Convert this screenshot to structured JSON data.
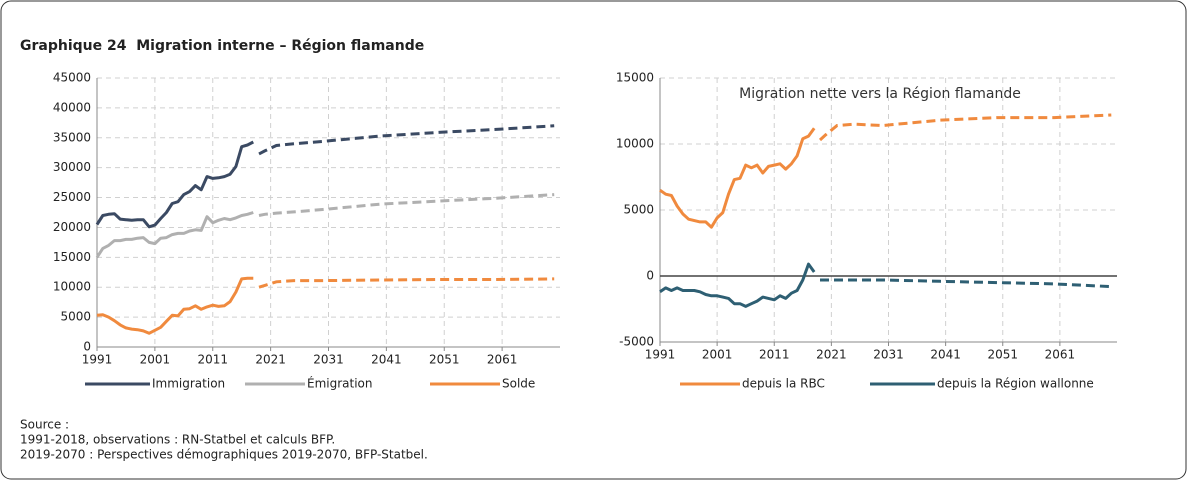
{
  "figure_title": "Graphique 24  Migration interne – Région flamande",
  "source": [
    "Source :",
    "1991-2018, observations : RN-Statbel et calculs BFP.",
    "2019-2070 : Perspectives démographiques 2019-2070, BFP-Statbel."
  ],
  "chart_data": [
    {
      "type": "line",
      "x": [
        1991,
        1992,
        1993,
        1994,
        1995,
        1996,
        1997,
        1998,
        1999,
        2000,
        2001,
        2002,
        2003,
        2004,
        2005,
        2006,
        2007,
        2008,
        2009,
        2010,
        2011,
        2012,
        2013,
        2014,
        2015,
        2016,
        2017,
        2018
      ],
      "x_projection": [
        2019,
        2020,
        2022,
        2025,
        2030,
        2040,
        2050,
        2060,
        2070
      ],
      "xlim": [
        1991,
        2071
      ],
      "xticks": [
        1991,
        2001,
        2011,
        2021,
        2031,
        2041,
        2051,
        2061
      ],
      "ylim": [
        0,
        45000
      ],
      "yticks": [
        0,
        5000,
        10000,
        15000,
        20000,
        25000,
        30000,
        35000,
        40000,
        45000
      ],
      "grid": true,
      "series": [
        {
          "name": "Immigration",
          "color": "#3b4a63",
          "values": [
            20500,
            22000,
            22200,
            22300,
            21400,
            21300,
            21200,
            21300,
            21300,
            20100,
            20400,
            21500,
            22500,
            24000,
            24300,
            25500,
            26000,
            27000,
            26300,
            28500,
            28200,
            28300,
            28500,
            28900,
            30200,
            33500,
            33800,
            34300
          ],
          "projection_values": [
            32300,
            32800,
            33700,
            34000,
            34400,
            35300,
            35900,
            36400,
            37000
          ]
        },
        {
          "name": "Émigration",
          "color": "#b0b0b0",
          "values": [
            15000,
            16500,
            17000,
            17800,
            17800,
            18000,
            18000,
            18200,
            18300,
            17500,
            17300,
            18200,
            18300,
            18800,
            19000,
            19000,
            19400,
            19600,
            19500,
            21800,
            20800,
            21200,
            21500,
            21300,
            21600,
            22000,
            22200,
            22500
          ],
          "projection_values": [
            22000,
            22200,
            22400,
            22600,
            23000,
            23900,
            24400,
            24900,
            25500
          ]
        },
        {
          "name": "Solde",
          "color": "#f08a3e",
          "values": [
            5300,
            5400,
            5000,
            4400,
            3700,
            3200,
            3000,
            2900,
            2700,
            2300,
            2800,
            3300,
            4300,
            5300,
            5200,
            6300,
            6400,
            6900,
            6300,
            6700,
            7000,
            6800,
            6900,
            7600,
            9200,
            11400,
            11500,
            11500
          ],
          "projection_values": [
            10000,
            10300,
            10900,
            11100,
            11100,
            11200,
            11300,
            11300,
            11400
          ]
        }
      ]
    },
    {
      "type": "line",
      "title": "Migration nette vers la Région flamande",
      "x": [
        1991,
        1992,
        1993,
        1994,
        1995,
        1996,
        1997,
        1998,
        1999,
        2000,
        2001,
        2002,
        2003,
        2004,
        2005,
        2006,
        2007,
        2008,
        2009,
        2010,
        2011,
        2012,
        2013,
        2014,
        2015,
        2016,
        2017,
        2018
      ],
      "x_projection": [
        2019,
        2020,
        2022,
        2025,
        2030,
        2040,
        2050,
        2060,
        2070
      ],
      "xlim": [
        1991,
        2071
      ],
      "xticks": [
        1991,
        2001,
        2011,
        2021,
        2031,
        2041,
        2051,
        2061
      ],
      "ylim": [
        -5000,
        15000
      ],
      "yticks": [
        -5000,
        0,
        5000,
        10000,
        15000
      ],
      "grid": true,
      "series": [
        {
          "name": "depuis la RBC",
          "color": "#f08a3e",
          "values": [
            6500,
            6200,
            6100,
            5300,
            4700,
            4300,
            4200,
            4100,
            4100,
            3700,
            4400,
            4800,
            6200,
            7300,
            7400,
            8400,
            8200,
            8400,
            7800,
            8300,
            8400,
            8500,
            8100,
            8500,
            9100,
            10400,
            10600,
            11200
          ],
          "projection_values": [
            10300,
            10700,
            11400,
            11500,
            11400,
            11800,
            12000,
            12000,
            12200
          ]
        },
        {
          "name": "depuis la Région wallonne",
          "color": "#2e5f73",
          "values": [
            -1200,
            -900,
            -1100,
            -900,
            -1100,
            -1100,
            -1100,
            -1200,
            -1400,
            -1500,
            -1500,
            -1600,
            -1700,
            -2100,
            -2100,
            -2300,
            -2100,
            -1900,
            -1600,
            -1700,
            -1800,
            -1500,
            -1700,
            -1300,
            -1100,
            -300,
            900,
            300
          ],
          "projection_values": [
            -300,
            -300,
            -300,
            -300,
            -300,
            -400,
            -500,
            -600,
            -800
          ]
        }
      ]
    }
  ]
}
